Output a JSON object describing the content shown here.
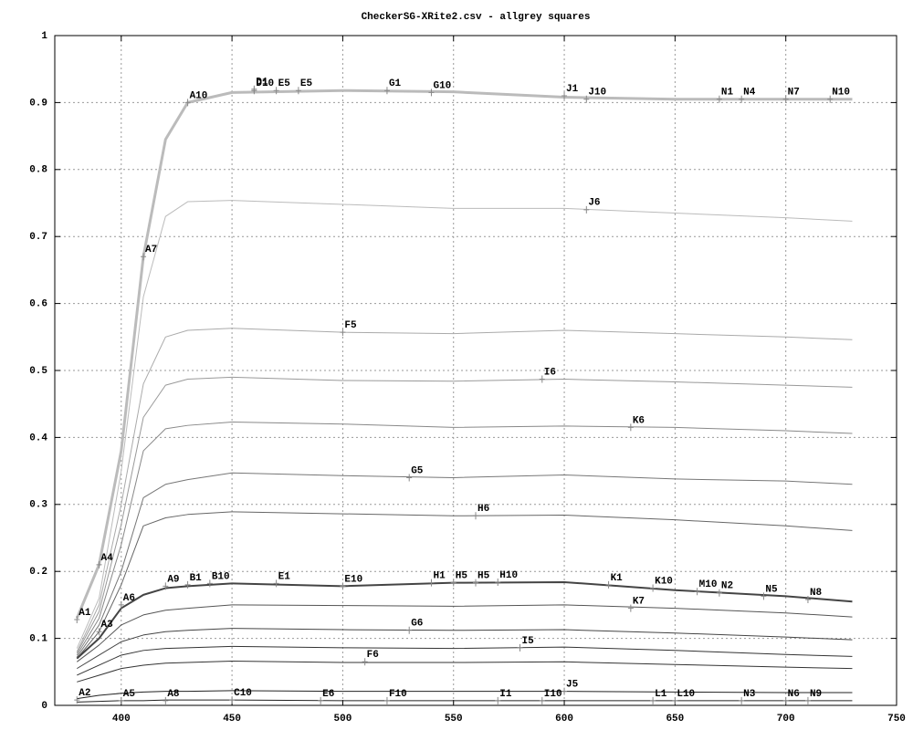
{
  "chart_data": {
    "type": "line",
    "title": "CheckerSG-XRite2.csv - allgrey squares",
    "x": [
      380,
      390,
      400,
      410,
      420,
      430,
      450,
      500,
      550,
      600,
      650,
      700,
      730
    ],
    "xlim": [
      370,
      750
    ],
    "xticks": [
      400,
      450,
      500,
      550,
      600,
      650,
      700,
      750
    ],
    "ylim": [
      0,
      1
    ],
    "yticks": [
      0,
      0.1,
      0.2,
      0.3,
      0.4,
      0.5,
      0.6,
      0.7,
      0.8,
      0.9,
      1
    ],
    "grid": true,
    "series": [
      {
        "color": "#bbbbbb",
        "values": [
          0.13,
          0.21,
          0.38,
          0.67,
          0.845,
          0.9,
          0.915,
          0.918,
          0.916,
          0.908,
          0.905,
          0.905,
          0.905
        ]
      },
      {
        "color": "#bbbbbb",
        "values": [
          0.085,
          0.16,
          0.35,
          0.61,
          0.73,
          0.752,
          0.754,
          0.748,
          0.742,
          0.742,
          0.735,
          0.728,
          0.723
        ]
      },
      {
        "color": "#aaaaaa",
        "values": [
          0.08,
          0.15,
          0.3,
          0.48,
          0.55,
          0.56,
          0.563,
          0.557,
          0.555,
          0.56,
          0.555,
          0.55,
          0.546
        ]
      },
      {
        "color": "#999999",
        "values": [
          0.078,
          0.14,
          0.27,
          0.43,
          0.478,
          0.487,
          0.49,
          0.485,
          0.484,
          0.487,
          0.483,
          0.478,
          0.475
        ]
      },
      {
        "color": "#888888",
        "values": [
          0.075,
          0.13,
          0.24,
          0.38,
          0.413,
          0.418,
          0.423,
          0.42,
          0.415,
          0.417,
          0.415,
          0.41,
          0.406
        ]
      },
      {
        "color": "#777777",
        "values": [
          0.072,
          0.12,
          0.2,
          0.31,
          0.33,
          0.337,
          0.347,
          0.343,
          0.34,
          0.344,
          0.338,
          0.335,
          0.33
        ]
      },
      {
        "color": "#666666",
        "values": [
          0.07,
          0.11,
          0.18,
          0.268,
          0.28,
          0.285,
          0.289,
          0.286,
          0.283,
          0.284,
          0.277,
          0.268,
          0.261
        ]
      },
      {
        "color": "#444444",
        "values": [
          0.07,
          0.1,
          0.145,
          0.165,
          0.175,
          0.178,
          0.182,
          0.178,
          0.183,
          0.184,
          0.172,
          0.163,
          0.155
        ]
      },
      {
        "color": "#555555",
        "values": [
          0.065,
          0.09,
          0.12,
          0.135,
          0.142,
          0.145,
          0.15,
          0.149,
          0.148,
          0.15,
          0.145,
          0.138,
          0.132
        ]
      },
      {
        "color": "#444444",
        "values": [
          0.055,
          0.075,
          0.095,
          0.105,
          0.11,
          0.112,
          0.115,
          0.113,
          0.112,
          0.113,
          0.108,
          0.102,
          0.098
        ]
      },
      {
        "color": "#333333",
        "values": [
          0.045,
          0.06,
          0.075,
          0.082,
          0.085,
          0.086,
          0.088,
          0.086,
          0.085,
          0.087,
          0.082,
          0.076,
          0.073
        ]
      },
      {
        "color": "#333333",
        "values": [
          0.035,
          0.045,
          0.055,
          0.06,
          0.063,
          0.064,
          0.066,
          0.064,
          0.064,
          0.065,
          0.061,
          0.057,
          0.055
        ]
      },
      {
        "color": "#222222",
        "values": [
          0.01,
          0.015,
          0.018,
          0.02,
          0.021,
          0.021,
          0.022,
          0.021,
          0.021,
          0.021,
          0.02,
          0.019,
          0.019
        ]
      },
      {
        "color": "#222222",
        "values": [
          0.005,
          0.006,
          0.007,
          0.007,
          0.008,
          0.008,
          0.008,
          0.007,
          0.007,
          0.007,
          0.007,
          0.007,
          0.007
        ]
      }
    ],
    "annotations": [
      {
        "label": "A1",
        "x": 380,
        "y": 0.128
      },
      {
        "label": "A2",
        "x": 380,
        "y": 0.008
      },
      {
        "label": "A3",
        "x": 390,
        "y": 0.11
      },
      {
        "label": "A4",
        "x": 390,
        "y": 0.21
      },
      {
        "label": "A5",
        "x": 400,
        "y": 0.007
      },
      {
        "label": "A6",
        "x": 400,
        "y": 0.15
      },
      {
        "label": "A7",
        "x": 410,
        "y": 0.67
      },
      {
        "label": "A8",
        "x": 420,
        "y": 0.007
      },
      {
        "label": "A9",
        "x": 420,
        "y": 0.178
      },
      {
        "label": "A10",
        "x": 430,
        "y": 0.9
      },
      {
        "label": "B1",
        "x": 430,
        "y": 0.18
      },
      {
        "label": "B10",
        "x": 440,
        "y": 0.182
      },
      {
        "label": "C10",
        "x": 450,
        "y": 0.008
      },
      {
        "label": "D1",
        "x": 460,
        "y": 0.92
      },
      {
        "label": "D10",
        "x": 460,
        "y": 0.918
      },
      {
        "label": "E5",
        "x": 470,
        "y": 0.918
      },
      {
        "label": "E5",
        "x": 480,
        "y": 0.918
      },
      {
        "label": "E1",
        "x": 470,
        "y": 0.182
      },
      {
        "label": "E6",
        "x": 490,
        "y": 0.007
      },
      {
        "label": "E10",
        "x": 500,
        "y": 0.178
      },
      {
        "label": "F5",
        "x": 500,
        "y": 0.557
      },
      {
        "label": "F6",
        "x": 510,
        "y": 0.065
      },
      {
        "label": "F10",
        "x": 520,
        "y": 0.007
      },
      {
        "label": "G1",
        "x": 520,
        "y": 0.918
      },
      {
        "label": "G5",
        "x": 530,
        "y": 0.34
      },
      {
        "label": "G6",
        "x": 530,
        "y": 0.112
      },
      {
        "label": "G10",
        "x": 540,
        "y": 0.915
      },
      {
        "label": "H1",
        "x": 540,
        "y": 0.183
      },
      {
        "label": "H5",
        "x": 550,
        "y": 0.183
      },
      {
        "label": "H5",
        "x": 560,
        "y": 0.183
      },
      {
        "label": "H6",
        "x": 560,
        "y": 0.283
      },
      {
        "label": "H10",
        "x": 570,
        "y": 0.184
      },
      {
        "label": "I1",
        "x": 570,
        "y": 0.007
      },
      {
        "label": "I5",
        "x": 580,
        "y": 0.086
      },
      {
        "label": "I6",
        "x": 590,
        "y": 0.487
      },
      {
        "label": "I10",
        "x": 590,
        "y": 0.007
      },
      {
        "label": "J1",
        "x": 600,
        "y": 0.91
      },
      {
        "label": "J5",
        "x": 600,
        "y": 0.021
      },
      {
        "label": "J6",
        "x": 610,
        "y": 0.74
      },
      {
        "label": "J10",
        "x": 610,
        "y": 0.905
      },
      {
        "label": "K1",
        "x": 620,
        "y": 0.18
      },
      {
        "label": "K6",
        "x": 630,
        "y": 0.415
      },
      {
        "label": "K7",
        "x": 630,
        "y": 0.145
      },
      {
        "label": "K10",
        "x": 640,
        "y": 0.175
      },
      {
        "label": "L1",
        "x": 640,
        "y": 0.007
      },
      {
        "label": "L10",
        "x": 650,
        "y": 0.007
      },
      {
        "label": "M10",
        "x": 660,
        "y": 0.17
      },
      {
        "label": "N1",
        "x": 670,
        "y": 0.905
      },
      {
        "label": "N2",
        "x": 670,
        "y": 0.168
      },
      {
        "label": "N3",
        "x": 680,
        "y": 0.007
      },
      {
        "label": "N4",
        "x": 680,
        "y": 0.905
      },
      {
        "label": "N5",
        "x": 690,
        "y": 0.163
      },
      {
        "label": "N6",
        "x": 700,
        "y": 0.007
      },
      {
        "label": "N7",
        "x": 700,
        "y": 0.905
      },
      {
        "label": "N8",
        "x": 710,
        "y": 0.158
      },
      {
        "label": "N9",
        "x": 710,
        "y": 0.007
      },
      {
        "label": "N10",
        "x": 720,
        "y": 0.905
      }
    ]
  }
}
